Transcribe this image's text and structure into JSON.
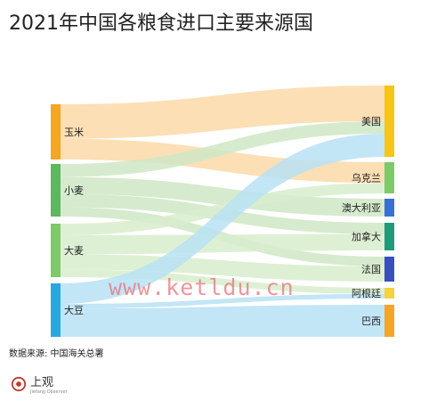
{
  "title": "2021年中国各粮食进口主要来源国",
  "source_note": "数据来源: 中国海关总署",
  "watermark": "www.ketldu.cn",
  "logo": {
    "name": "上观",
    "subtitle": "Jiefang Observer"
  },
  "diagram": {
    "type": "sankey",
    "sources": [
      {
        "id": "corn",
        "label": "玉米",
        "color": "#f5a623"
      },
      {
        "id": "wheat",
        "label": "小麦",
        "color": "#5cb85c"
      },
      {
        "id": "barley",
        "label": "大麦",
        "color": "#7ec96a"
      },
      {
        "id": "soybean",
        "label": "大豆",
        "color": "#29a8e0"
      }
    ],
    "targets": [
      {
        "id": "usa",
        "label": "美国",
        "color": "#f5c518"
      },
      {
        "id": "ukraine",
        "label": "乌克兰",
        "color": "#7ec96a"
      },
      {
        "id": "australia",
        "label": "澳大利亚",
        "color": "#3a6fd8"
      },
      {
        "id": "canada",
        "label": "加拿大",
        "color": "#1f9a7a"
      },
      {
        "id": "france",
        "label": "法国",
        "color": "#3a4fbf"
      },
      {
        "id": "argentina",
        "label": "阿根廷",
        "color": "#f5d33b"
      },
      {
        "id": "brazil",
        "label": "巴西",
        "color": "#f5a623"
      }
    ],
    "flows": [
      {
        "from": "corn",
        "to": "usa",
        "weight": 40,
        "color": "#fbd9a8"
      },
      {
        "from": "corn",
        "to": "ukraine",
        "weight": 24,
        "color": "#fbd9a8"
      },
      {
        "from": "wheat",
        "to": "usa",
        "weight": 14,
        "color": "#cfe8c6"
      },
      {
        "from": "wheat",
        "to": "australia",
        "weight": 18,
        "color": "#cfe8c6"
      },
      {
        "from": "wheat",
        "to": "canada",
        "weight": 14,
        "color": "#cfe8c6"
      },
      {
        "from": "wheat",
        "to": "france",
        "weight": 10,
        "color": "#cfe8c6"
      },
      {
        "from": "barley",
        "to": "ukraine",
        "weight": 12,
        "color": "#d8edcc"
      },
      {
        "from": "barley",
        "to": "canada",
        "weight": 20,
        "color": "#d8edcc"
      },
      {
        "from": "barley",
        "to": "france",
        "weight": 16,
        "color": "#d8edcc"
      },
      {
        "from": "barley",
        "to": "argentina",
        "weight": 8,
        "color": "#d8edcc"
      },
      {
        "from": "soybean",
        "to": "usa",
        "weight": 26,
        "color": "#b9e2f5"
      },
      {
        "from": "soybean",
        "to": "argentina",
        "weight": 6,
        "color": "#b9e2f5"
      },
      {
        "from": "soybean",
        "to": "brazil",
        "weight": 36,
        "color": "#b9e2f5"
      }
    ]
  }
}
